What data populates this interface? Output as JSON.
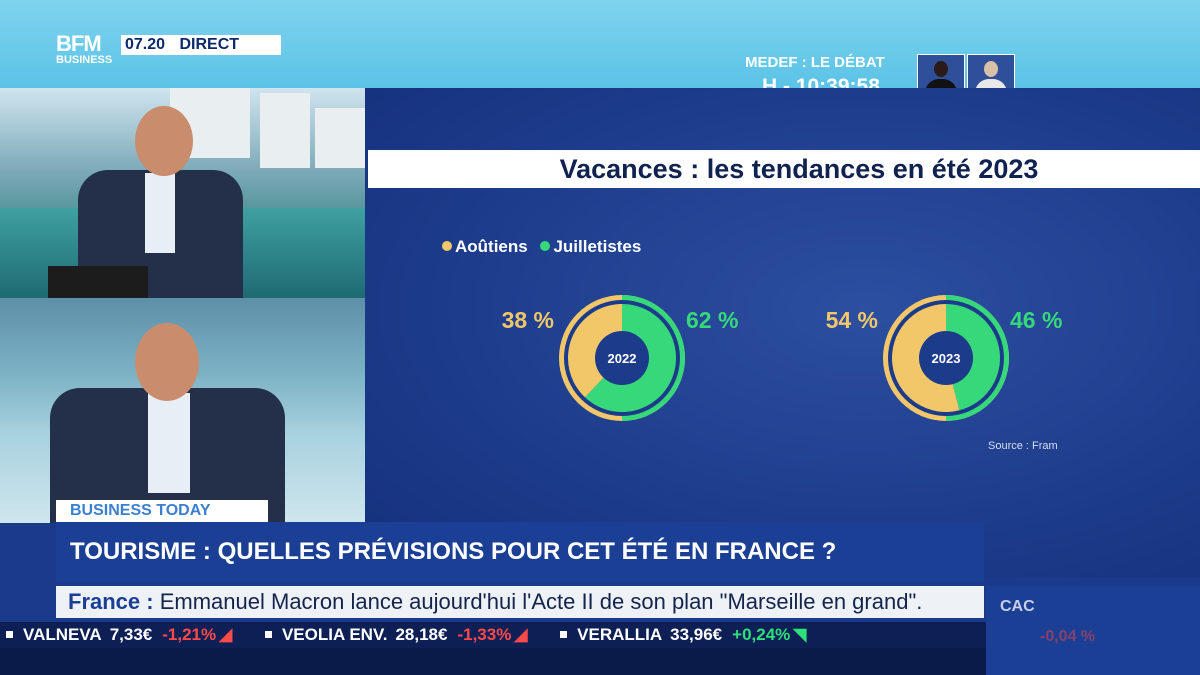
{
  "channel": {
    "logo_line1": "BFM",
    "logo_line2": "BUSINESS",
    "time": "07.20",
    "live": "DIRECT"
  },
  "promo": {
    "title": "MEDEF : LE DÉBAT",
    "countdown": "H - 10:39:58"
  },
  "show": {
    "label": "BUSINESS TODAY",
    "headline": "TOURISME : QUELLES PRÉVISIONS POUR CET ÉTÉ EN FRANCE ?"
  },
  "news_ticker": {
    "category": "France :",
    "text": "Emmanuel Macron lance aujourd'hui l'Acte II de son plan \"Marseille en grand\"."
  },
  "index": {
    "name": "CAC",
    "value": "-0,04 %"
  },
  "stocks": [
    {
      "name": "VALNEVA",
      "price": "7,33€",
      "change": "-1,21%",
      "dir": "down"
    },
    {
      "name": "VEOLIA ENV.",
      "price": "28,18€",
      "change": "-1,33%",
      "dir": "down"
    },
    {
      "name": "VERALLIA",
      "price": "33,96€",
      "change": "+0,24%",
      "dir": "up"
    }
  ],
  "chart_data": {
    "type": "pie",
    "title": "Vacances : les tendances en été 2023",
    "source": "Source : Fram",
    "legend": [
      {
        "name": "Aoûtiens",
        "color": "#f2c76a"
      },
      {
        "name": "Juilletistes",
        "color": "#36d87a"
      }
    ],
    "categories": [
      "Aoûtiens",
      "Juilletistes"
    ],
    "charts": [
      {
        "label": "2022",
        "values": [
          38,
          62
        ],
        "value_labels": [
          "38 %",
          "62 %"
        ]
      },
      {
        "label": "2023",
        "values": [
          54,
          46
        ],
        "value_labels": [
          "54 %",
          "46 %"
        ]
      }
    ]
  }
}
